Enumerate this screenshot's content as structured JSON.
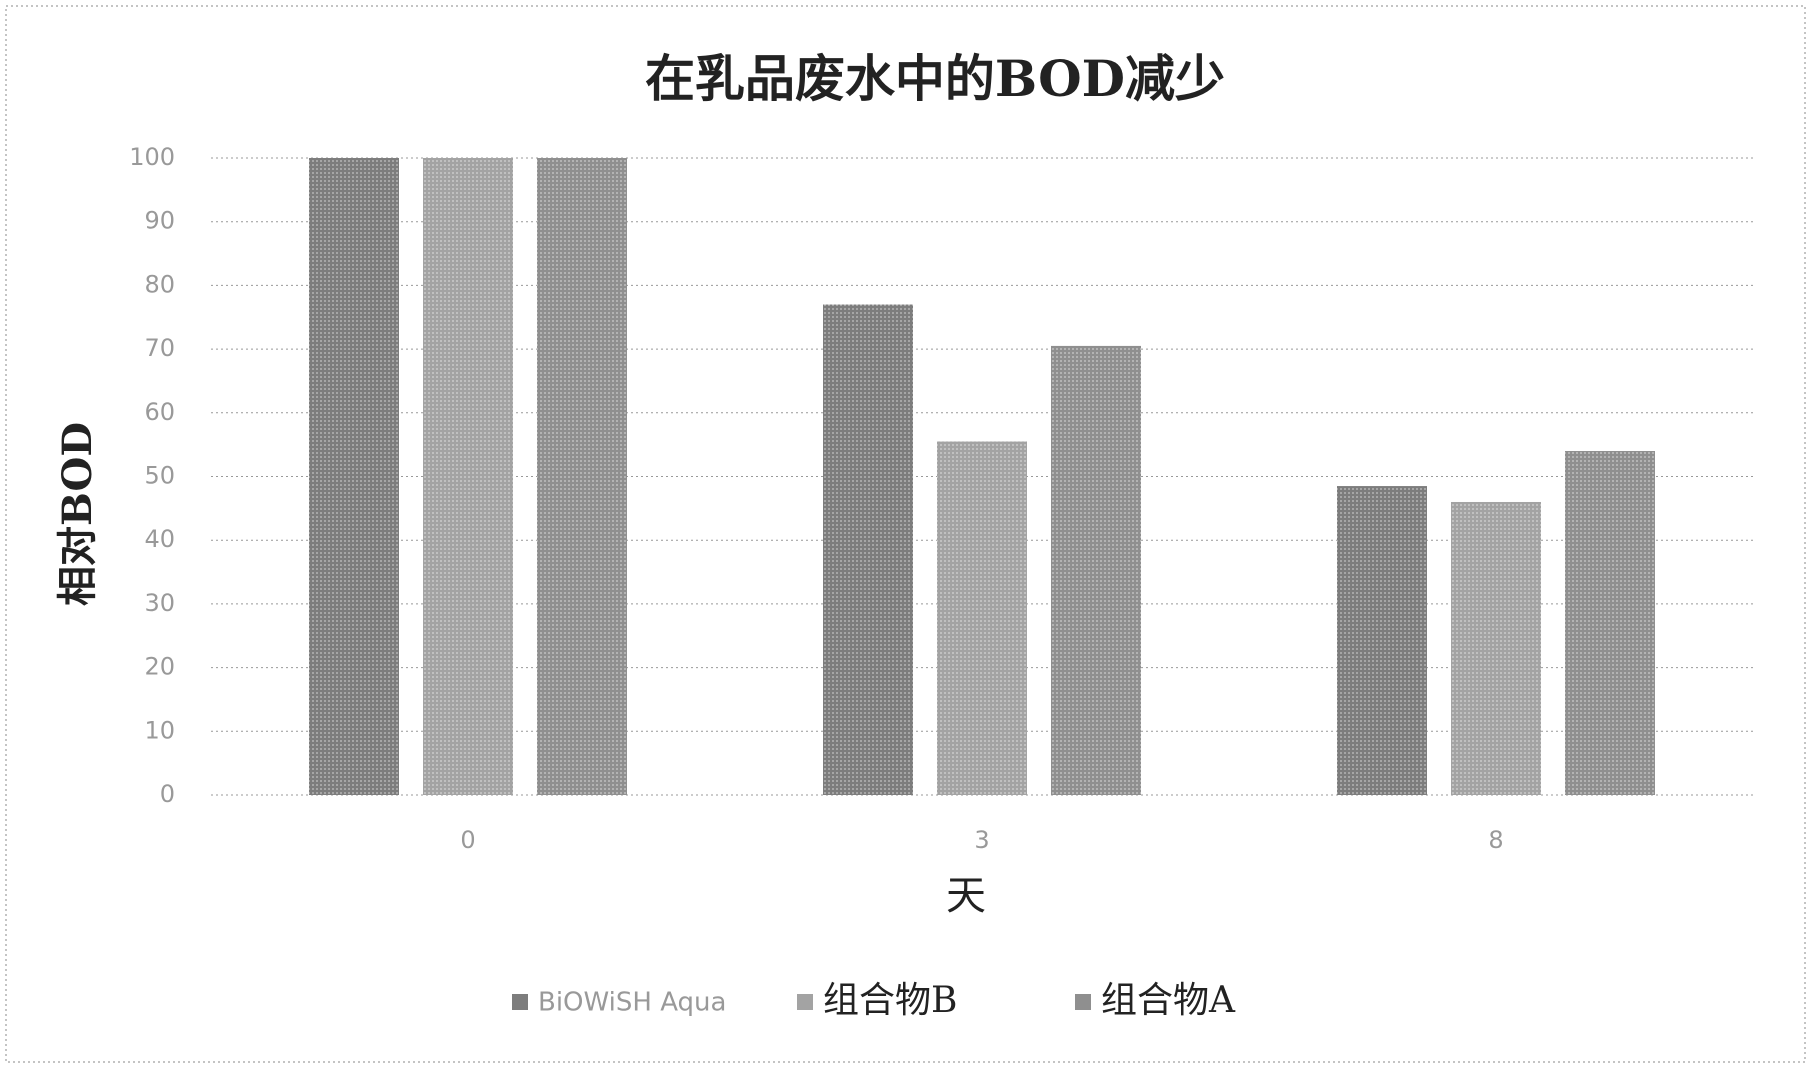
{
  "chart_data": {
    "type": "bar",
    "title": "在乳品废水中的BOD减少",
    "x_label": "天",
    "y_label": "相对BOD",
    "categories": [
      "0",
      "3",
      "8"
    ],
    "series": [
      {
        "name": "BiOWiSH Aqua",
        "color": "#7d7d7d",
        "values": [
          100,
          77,
          48.5
        ]
      },
      {
        "name": "组合物B",
        "color": "#a3a3a3",
        "values": [
          100,
          55.5,
          46
        ]
      },
      {
        "name": "组合物A",
        "color": "#8f8f8f",
        "values": [
          100,
          70.5,
          54
        ]
      }
    ],
    "ylim": [
      0,
      100
    ],
    "yticks": [
      0,
      10,
      20,
      30,
      40,
      50,
      60,
      70,
      80,
      90,
      100
    ],
    "grid": true,
    "legend": "bottom"
  }
}
